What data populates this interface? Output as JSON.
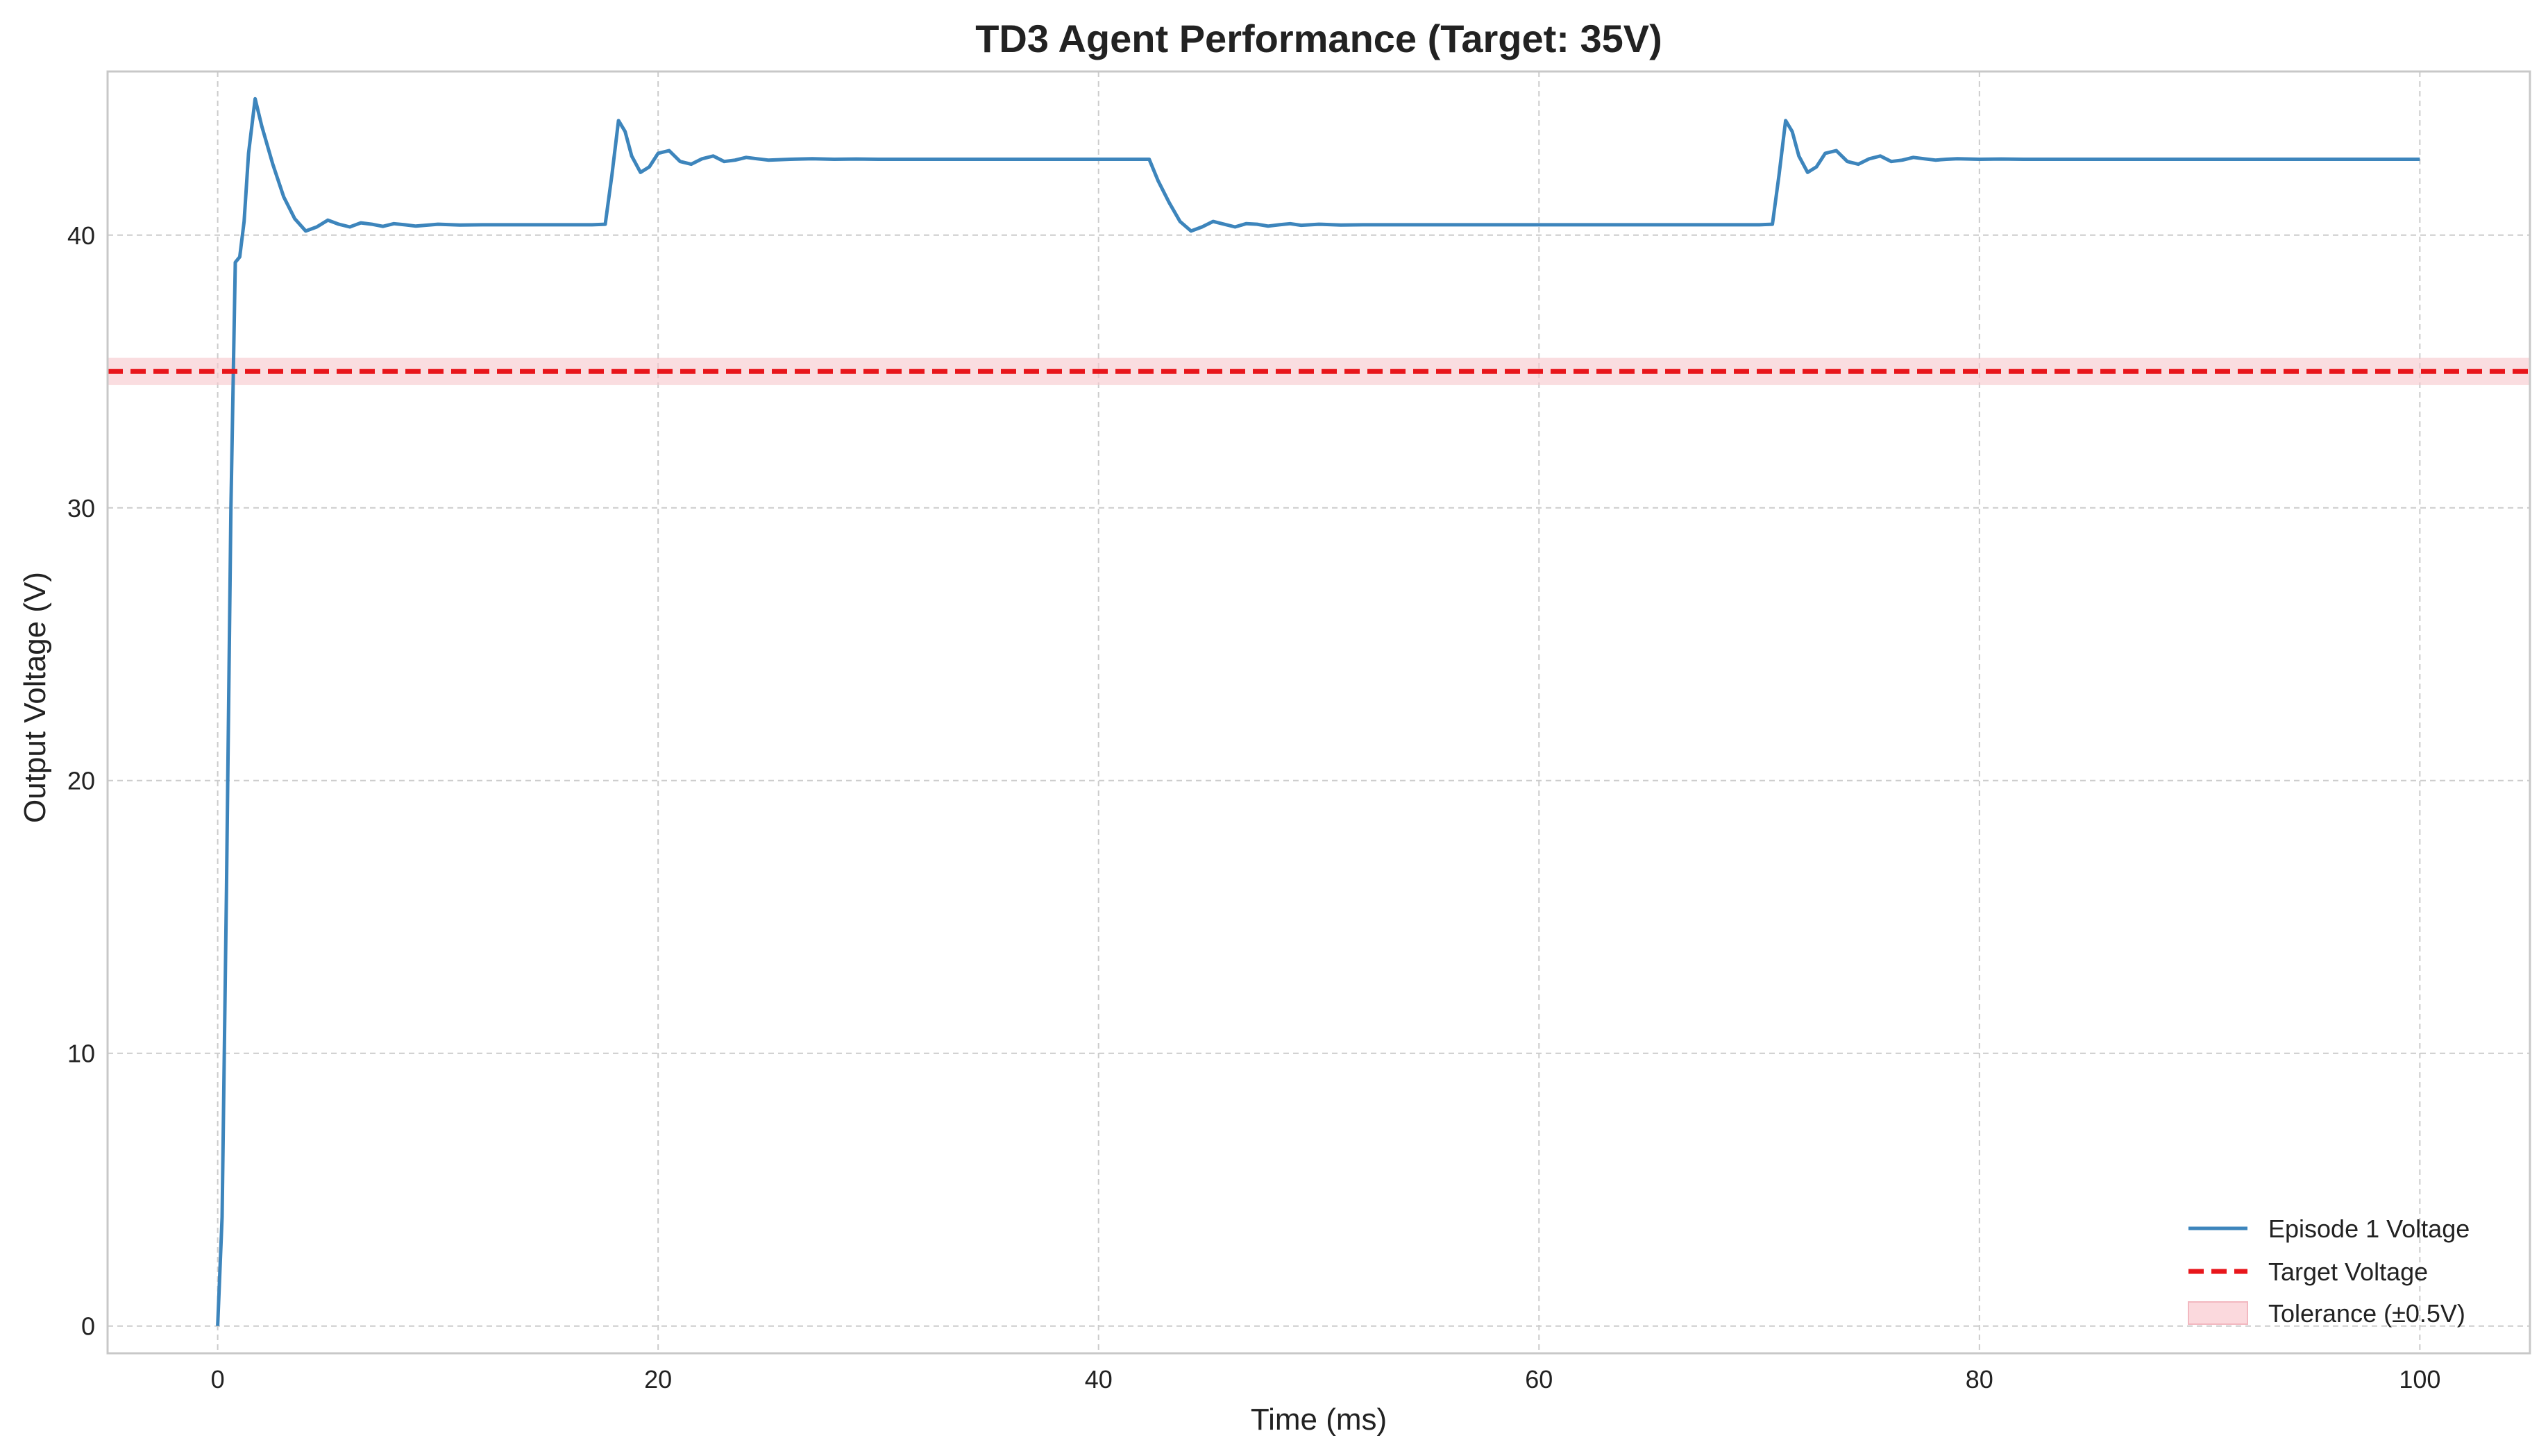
{
  "chart_data": {
    "type": "line",
    "title": "TD3 Agent Performance (Target: 35V)",
    "xlabel": "Time (ms)",
    "ylabel": "Output Voltage (V)",
    "xlim": [
      -5,
      105
    ],
    "ylim": [
      -1,
      46
    ],
    "xticks": [
      0,
      20,
      40,
      60,
      80,
      100
    ],
    "yticks": [
      0,
      10,
      20,
      30,
      40
    ],
    "grid": true,
    "legend_position": "bottom-right",
    "target": {
      "name": "Target Voltage",
      "value": 35,
      "color": "#e8161b",
      "style": "dashed"
    },
    "tolerance": {
      "name": "Tolerance (±0.5V)",
      "low": 34.5,
      "high": 35.5,
      "color": "#f7c6cc"
    },
    "series": [
      {
        "name": "Episode 1 Voltage",
        "color": "#3d85bc",
        "x": [
          0,
          0.2,
          0.4,
          0.6,
          0.8,
          1.0,
          1.2,
          1.4,
          1.7,
          2.0,
          2.5,
          3.0,
          3.5,
          4.0,
          4.5,
          5.0,
          5.5,
          6.0,
          6.5,
          7.0,
          7.5,
          8.0,
          8.5,
          9.0,
          10,
          11,
          12,
          13,
          14,
          15,
          16,
          17,
          17.6,
          17.9,
          18.2,
          18.5,
          18.8,
          19.2,
          19.6,
          20.0,
          20.5,
          21.0,
          21.5,
          22.0,
          22.5,
          23.0,
          23.5,
          24.0,
          24.5,
          25.0,
          26,
          27,
          28,
          29,
          30,
          32,
          35,
          38,
          40,
          42.3,
          42.7,
          43.2,
          43.7,
          44.2,
          44.7,
          45.2,
          45.7,
          46.2,
          46.7,
          47.2,
          47.7,
          48.2,
          48.7,
          49.2,
          50,
          51,
          52,
          53,
          55,
          60,
          65,
          70,
          70.6,
          70.9,
          71.2,
          71.5,
          71.8,
          72.2,
          72.6,
          73.0,
          73.5,
          74.0,
          74.5,
          75.0,
          75.5,
          76.0,
          76.5,
          77.0,
          77.5,
          78.0,
          78.5,
          79.0,
          80,
          81,
          82,
          83,
          85,
          90,
          95,
          100
        ],
        "values": [
          0,
          4,
          16,
          30,
          39,
          39.2,
          40.5,
          43,
          45,
          44,
          42.6,
          41.4,
          40.6,
          40.15,
          40.3,
          40.55,
          40.4,
          40.3,
          40.45,
          40.4,
          40.32,
          40.42,
          40.38,
          40.33,
          40.4,
          40.37,
          40.38,
          40.38,
          40.38,
          40.38,
          40.38,
          40.38,
          40.4,
          42.2,
          44.2,
          43.8,
          42.9,
          42.3,
          42.5,
          43.0,
          43.1,
          42.7,
          42.6,
          42.8,
          42.9,
          42.7,
          42.75,
          42.85,
          42.8,
          42.75,
          42.78,
          42.8,
          42.78,
          42.79,
          42.78,
          42.78,
          42.78,
          42.78,
          42.78,
          42.78,
          42.0,
          41.2,
          40.5,
          40.15,
          40.3,
          40.5,
          40.4,
          40.3,
          40.42,
          40.4,
          40.33,
          40.38,
          40.42,
          40.36,
          40.4,
          40.37,
          40.38,
          40.38,
          40.38,
          40.38,
          40.38,
          40.38,
          40.4,
          42.2,
          44.2,
          43.8,
          42.9,
          42.3,
          42.5,
          43.0,
          43.1,
          42.7,
          42.6,
          42.8,
          42.9,
          42.7,
          42.75,
          42.85,
          42.8,
          42.75,
          42.78,
          42.8,
          42.78,
          42.79,
          42.78,
          42.78,
          42.78,
          42.78,
          42.78,
          42.78
        ]
      }
    ]
  }
}
